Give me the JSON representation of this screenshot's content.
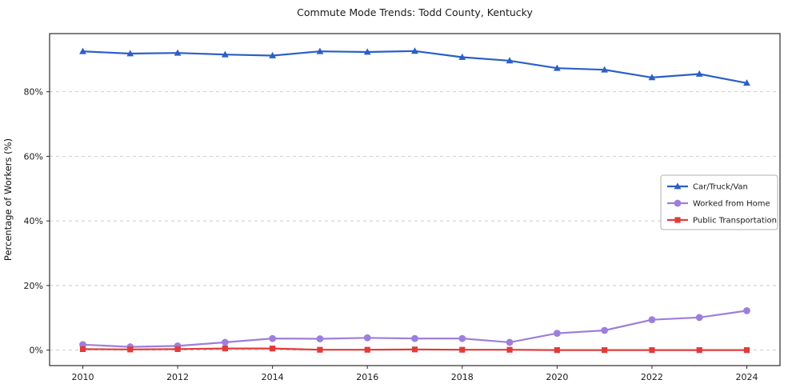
{
  "title": "Commute Mode Trends: Todd County, Kentucky",
  "ylabel": "Percentage of Workers (%)",
  "chart_data": {
    "type": "line",
    "title": "Commute Mode Trends: Todd County, Kentucky",
    "xlabel": "",
    "ylabel": "Percentage of Workers (%)",
    "x": [
      2010,
      2011,
      2012,
      2013,
      2014,
      2015,
      2016,
      2017,
      2018,
      2019,
      2020,
      2021,
      2022,
      2023,
      2024
    ],
    "series": [
      {
        "name": "Car/Truck/Van",
        "color": "#2b5fc7",
        "marker": "triangle",
        "values": [
          92.5,
          91.8,
          92.0,
          91.5,
          91.2,
          92.5,
          92.3,
          92.6,
          90.7,
          89.6,
          87.3,
          86.8,
          84.4,
          85.5,
          82.7
        ]
      },
      {
        "name": "Worked from Home",
        "color": "#9d7fdb",
        "marker": "circle",
        "values": [
          1.7,
          1.0,
          1.3,
          2.4,
          3.6,
          3.5,
          3.8,
          3.6,
          3.6,
          2.4,
          5.2,
          6.1,
          9.4,
          10.1,
          12.2
        ]
      },
      {
        "name": "Public Transportation",
        "color": "#e23b3b",
        "marker": "square",
        "values": [
          0.3,
          0.2,
          0.3,
          0.5,
          0.5,
          0.1,
          0.1,
          0.2,
          0.1,
          0.1,
          0.0,
          0.0,
          0.0,
          0.0,
          0.0
        ]
      }
    ],
    "xticks": [
      2010,
      2012,
      2014,
      2016,
      2018,
      2020,
      2022,
      2024
    ],
    "yticks": [
      0,
      20,
      40,
      60,
      80
    ],
    "ytick_suffix": "%",
    "xlim": [
      2009.3,
      2024.7
    ],
    "ylim": [
      -4.8,
      98.0
    ],
    "grid": "horizontal-dashed",
    "legend_position": "middle-right"
  }
}
